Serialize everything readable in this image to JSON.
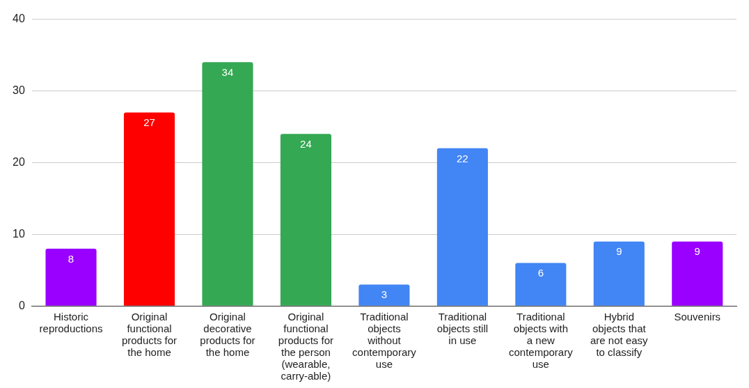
{
  "chart_data": {
    "type": "bar",
    "categories": [
      "Historic reproductions",
      "Original functional products for the home",
      "Original decorative products for the home",
      "Original functional products for the person (wearable, carry-able)",
      "Traditional objects without contemporary use",
      "Traditional objects still in use",
      "Traditional objects with a new contemporary use",
      "Hybrid objects that are not easy to classify",
      "Souvenirs"
    ],
    "values": [
      8,
      27,
      34,
      24,
      3,
      22,
      6,
      9,
      9
    ],
    "colors": [
      "#9900ff",
      "#ff0000",
      "#34a853",
      "#34a853",
      "#4285f4",
      "#4285f4",
      "#4285f4",
      "#4285f4",
      "#9900ff"
    ],
    "ylim": [
      0,
      40
    ],
    "yticks": [
      0,
      10,
      20,
      30,
      40
    ],
    "grid": "y",
    "data_labels": true
  }
}
